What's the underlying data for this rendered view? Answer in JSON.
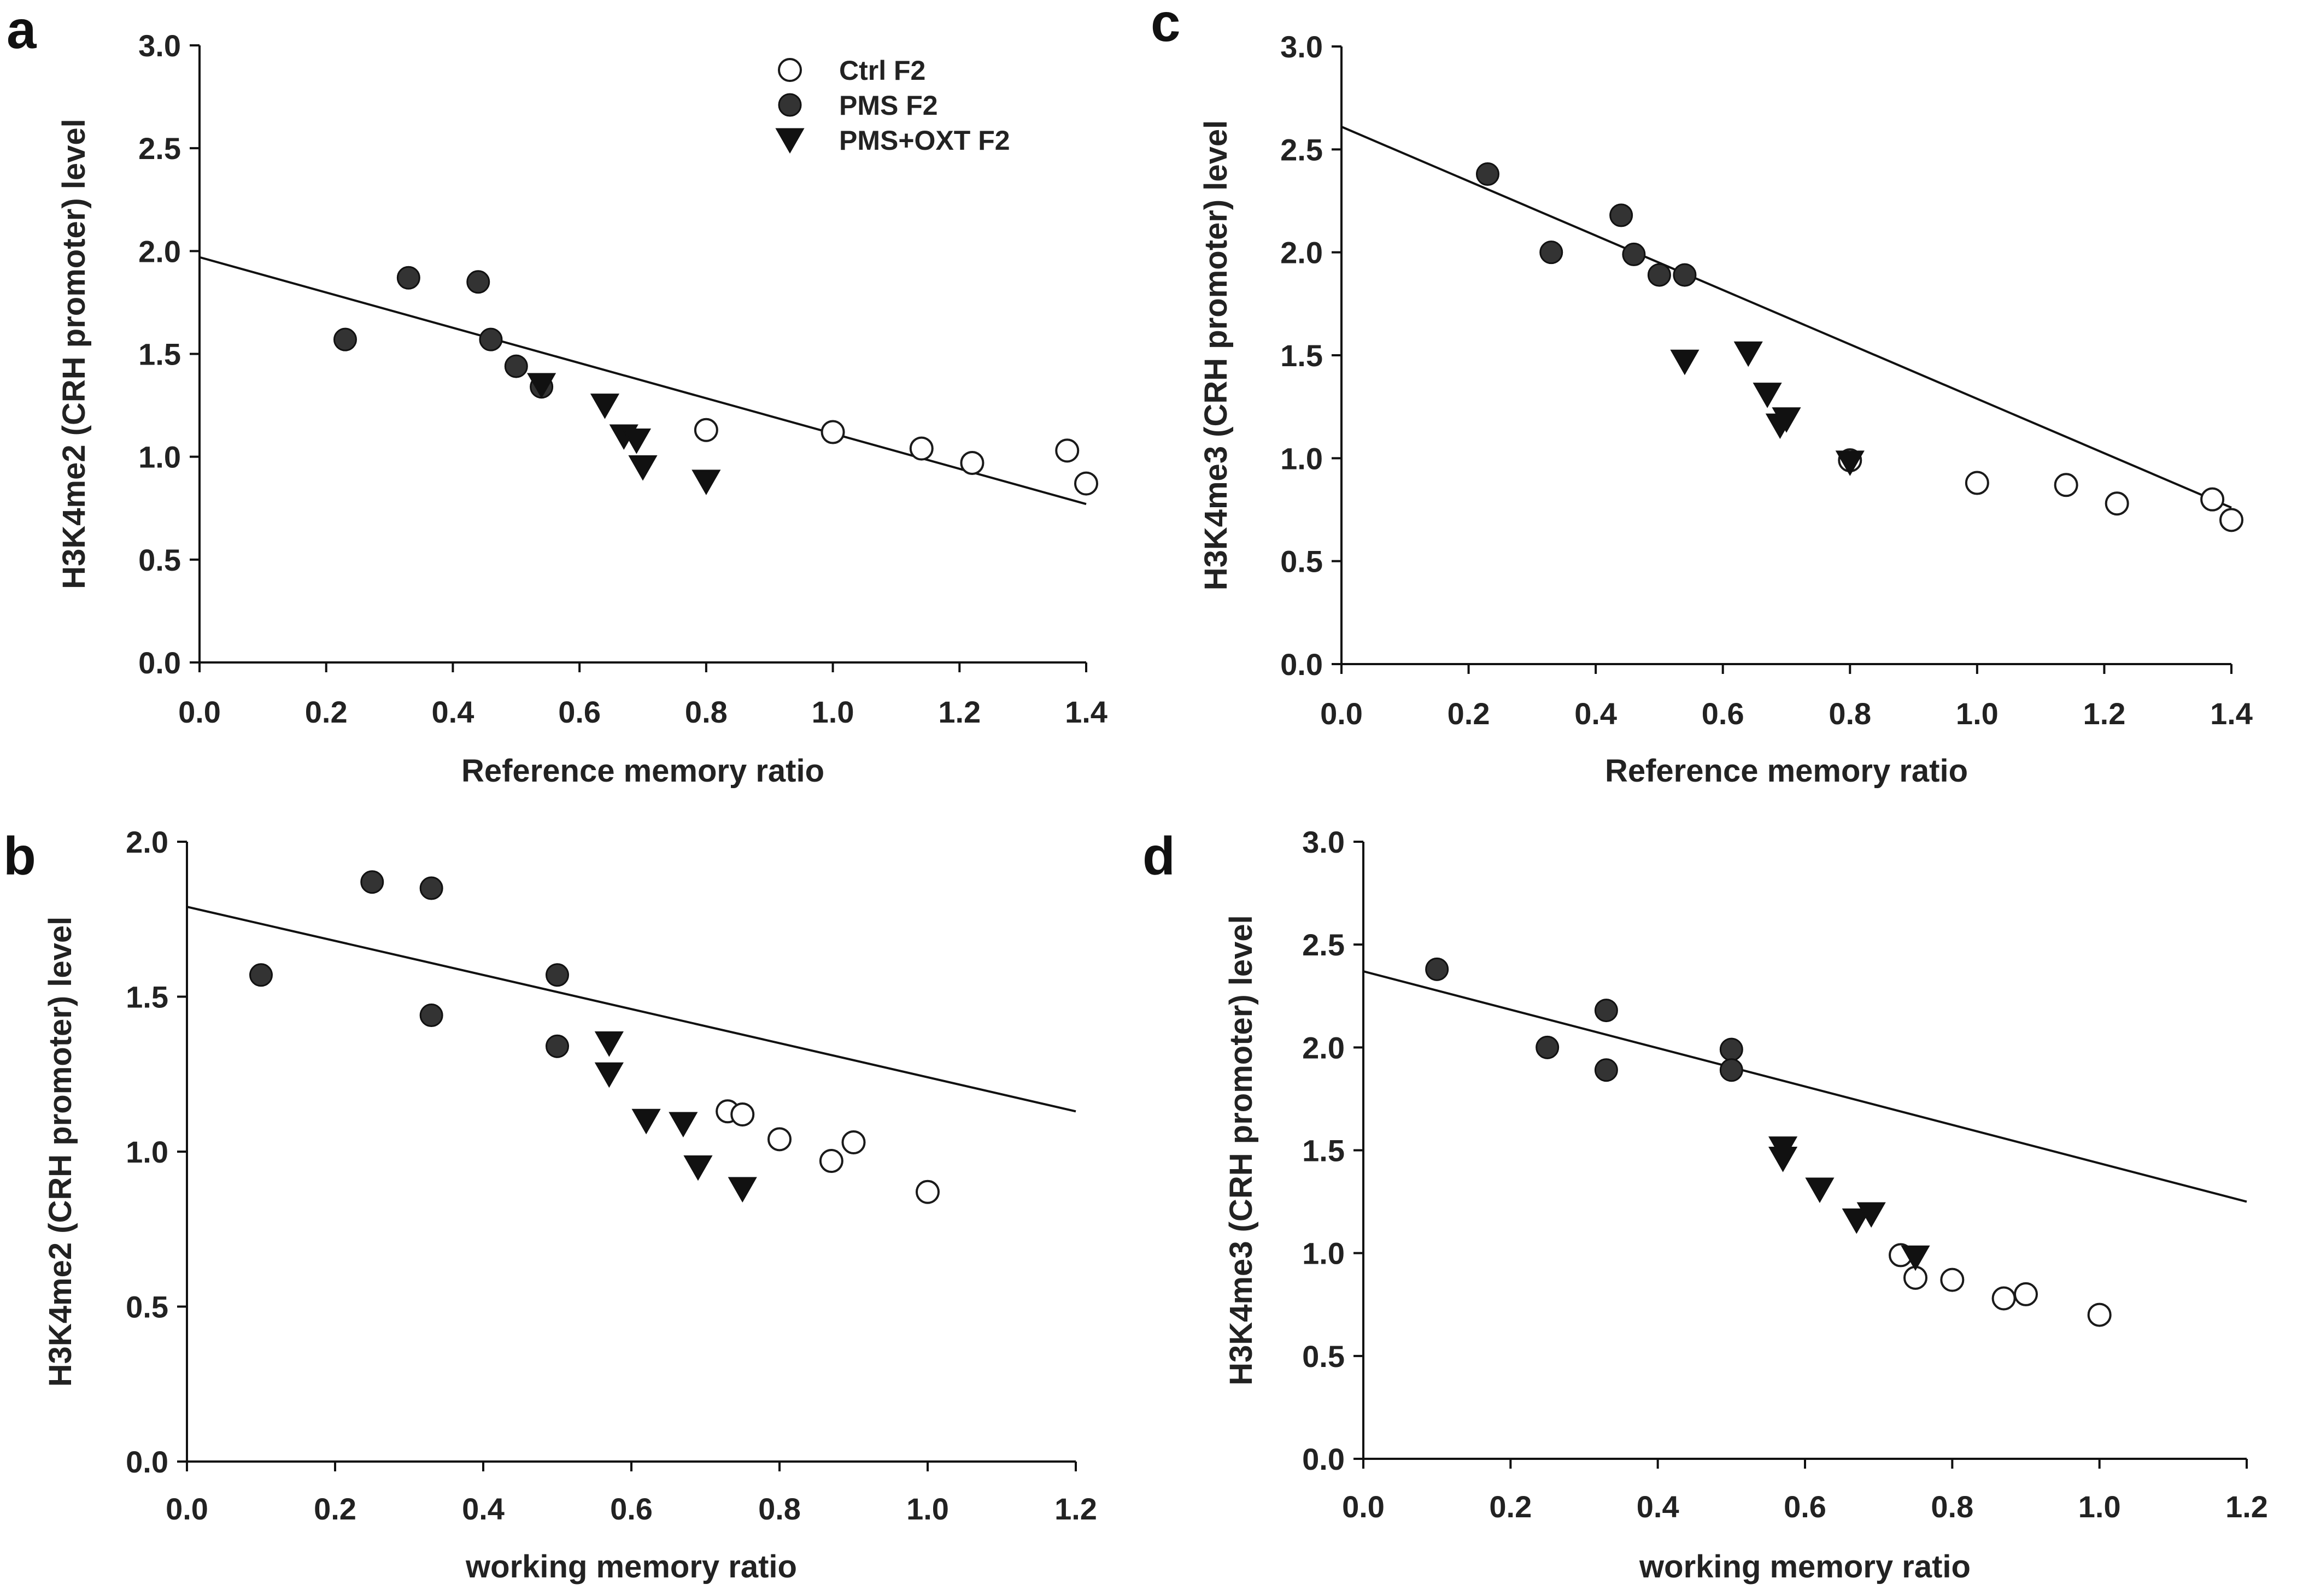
{
  "figure": {
    "series_styles": {
      "Ctrl F2": {
        "marker": "open-circle",
        "fill": "#ffffff",
        "stroke": "#1a1a1a"
      },
      "PMS F2": {
        "marker": "filled-circle",
        "fill": "#333333",
        "stroke": "#111111"
      },
      "PMS+OXT F2": {
        "marker": "filled-down-triangle",
        "fill": "#111111",
        "stroke": "#111111"
      }
    }
  },
  "chart_data": [
    {
      "panel": "a",
      "type": "scatter",
      "xlabel": "Reference memory ratio",
      "ylabel": "H3K4me2 (CRH promoter) level",
      "xlim": [
        0,
        1.4
      ],
      "ylim": [
        0,
        3.0
      ],
      "xticks": [
        "0.0",
        "0.2",
        "0.4",
        "0.6",
        "0.8",
        "1.0",
        "1.2",
        "1.4"
      ],
      "yticks": [
        "0.0",
        "0.5",
        "1.0",
        "1.5",
        "2.0",
        "2.5",
        "3.0"
      ],
      "legend": [
        "Ctrl F2",
        "PMS F2",
        "PMS+OXT F2"
      ],
      "legend_position": "top-right",
      "series": [
        {
          "name": "Ctrl F2",
          "points": [
            [
              0.8,
              1.13
            ],
            [
              1.0,
              1.12
            ],
            [
              1.14,
              1.04
            ],
            [
              1.22,
              0.97
            ],
            [
              1.37,
              1.03
            ],
            [
              1.4,
              0.87
            ]
          ]
        },
        {
          "name": "PMS F2",
          "points": [
            [
              0.23,
              1.57
            ],
            [
              0.33,
              1.87
            ],
            [
              0.44,
              1.85
            ],
            [
              0.46,
              1.57
            ],
            [
              0.5,
              1.44
            ],
            [
              0.54,
              1.34
            ]
          ]
        },
        {
          "name": "PMS+OXT F2",
          "points": [
            [
              0.54,
              1.35
            ],
            [
              0.64,
              1.25
            ],
            [
              0.67,
              1.1
            ],
            [
              0.69,
              1.08
            ],
            [
              0.7,
              0.95
            ],
            [
              0.8,
              0.88
            ]
          ]
        }
      ],
      "regression_line": {
        "x": [
          0,
          1.4
        ],
        "y": [
          1.97,
          0.77
        ]
      }
    },
    {
      "panel": "b",
      "type": "scatter",
      "xlabel": "working memory ratio",
      "ylabel": "H3K4me2 (CRH promoter) level",
      "xlim": [
        0,
        1.2
      ],
      "ylim": [
        0,
        2.0
      ],
      "xticks": [
        "0.0",
        "0.2",
        "0.4",
        "0.6",
        "0.8",
        "1.0",
        "1.2"
      ],
      "yticks": [
        "0.0",
        "0.5",
        "1.0",
        "1.5",
        "2.0"
      ],
      "series": [
        {
          "name": "Ctrl F2",
          "points": [
            [
              0.73,
              1.13
            ],
            [
              0.75,
              1.12
            ],
            [
              0.8,
              1.04
            ],
            [
              0.87,
              0.97
            ],
            [
              0.9,
              1.03
            ],
            [
              1.0,
              0.87
            ]
          ]
        },
        {
          "name": "PMS F2",
          "points": [
            [
              0.1,
              1.57
            ],
            [
              0.25,
              1.87
            ],
            [
              0.33,
              1.85
            ],
            [
              0.33,
              1.44
            ],
            [
              0.5,
              1.57
            ],
            [
              0.5,
              1.34
            ]
          ]
        },
        {
          "name": "PMS+OXT F2",
          "points": [
            [
              0.57,
              1.35
            ],
            [
              0.57,
              1.25
            ],
            [
              0.62,
              1.1
            ],
            [
              0.67,
              1.09
            ],
            [
              0.69,
              0.95
            ],
            [
              0.75,
              0.88
            ]
          ]
        }
      ],
      "regression_line": {
        "x": [
          0,
          1.2
        ],
        "y": [
          1.79,
          1.13
        ]
      }
    },
    {
      "panel": "c",
      "type": "scatter",
      "xlabel": "Reference memory ratio",
      "ylabel": "H3K4me3 (CRH promoter) level",
      "xlim": [
        0,
        1.4
      ],
      "ylim": [
        0,
        3.0
      ],
      "xticks": [
        "0.0",
        "0.2",
        "0.4",
        "0.6",
        "0.8",
        "1.0",
        "1.2",
        "1.4"
      ],
      "yticks": [
        "0.0",
        "0.5",
        "1.0",
        "1.5",
        "2.0",
        "2.5",
        "3.0"
      ],
      "series": [
        {
          "name": "Ctrl F2",
          "points": [
            [
              0.8,
              0.99
            ],
            [
              1.0,
              0.88
            ],
            [
              1.14,
              0.87
            ],
            [
              1.22,
              0.78
            ],
            [
              1.37,
              0.8
            ],
            [
              1.4,
              0.7
            ]
          ]
        },
        {
          "name": "PMS F2",
          "points": [
            [
              0.23,
              2.38
            ],
            [
              0.33,
              2.0
            ],
            [
              0.44,
              2.18
            ],
            [
              0.46,
              1.99
            ],
            [
              0.5,
              1.89
            ],
            [
              0.54,
              1.89
            ]
          ]
        },
        {
          "name": "PMS+OXT F2",
          "points": [
            [
              0.54,
              1.47
            ],
            [
              0.64,
              1.51
            ],
            [
              0.67,
              1.31
            ],
            [
              0.69,
              1.16
            ],
            [
              0.7,
              1.19
            ],
            [
              0.8,
              0.98
            ]
          ]
        }
      ],
      "regression_line": {
        "x": [
          0,
          1.4
        ],
        "y": [
          2.61,
          0.76
        ]
      }
    },
    {
      "panel": "d",
      "type": "scatter",
      "xlabel": "working memory ratio",
      "ylabel": "H3K4me3 (CRH promoter) level",
      "xlim": [
        0,
        1.2
      ],
      "ylim": [
        0,
        3.0
      ],
      "xticks": [
        "0.0",
        "0.2",
        "0.4",
        "0.6",
        "0.8",
        "1.0",
        "1.2"
      ],
      "yticks": [
        "0.0",
        "0.5",
        "1.0",
        "1.5",
        "2.0",
        "2.5",
        "3.0"
      ],
      "series": [
        {
          "name": "Ctrl F2",
          "points": [
            [
              0.73,
              0.99
            ],
            [
              0.75,
              0.88
            ],
            [
              0.8,
              0.87
            ],
            [
              0.87,
              0.78
            ],
            [
              0.9,
              0.8
            ],
            [
              1.0,
              0.7
            ]
          ]
        },
        {
          "name": "PMS F2",
          "points": [
            [
              0.1,
              2.38
            ],
            [
              0.25,
              2.0
            ],
            [
              0.33,
              2.18
            ],
            [
              0.33,
              1.89
            ],
            [
              0.5,
              1.99
            ],
            [
              0.5,
              1.89
            ]
          ]
        },
        {
          "name": "PMS+OXT F2",
          "points": [
            [
              0.57,
              1.51
            ],
            [
              0.57,
              1.46
            ],
            [
              0.62,
              1.31
            ],
            [
              0.67,
              1.16
            ],
            [
              0.69,
              1.19
            ],
            [
              0.75,
              0.98
            ]
          ]
        }
      ],
      "regression_line": {
        "x": [
          0,
          1.2
        ],
        "y": [
          2.37,
          1.25
        ]
      }
    }
  ]
}
